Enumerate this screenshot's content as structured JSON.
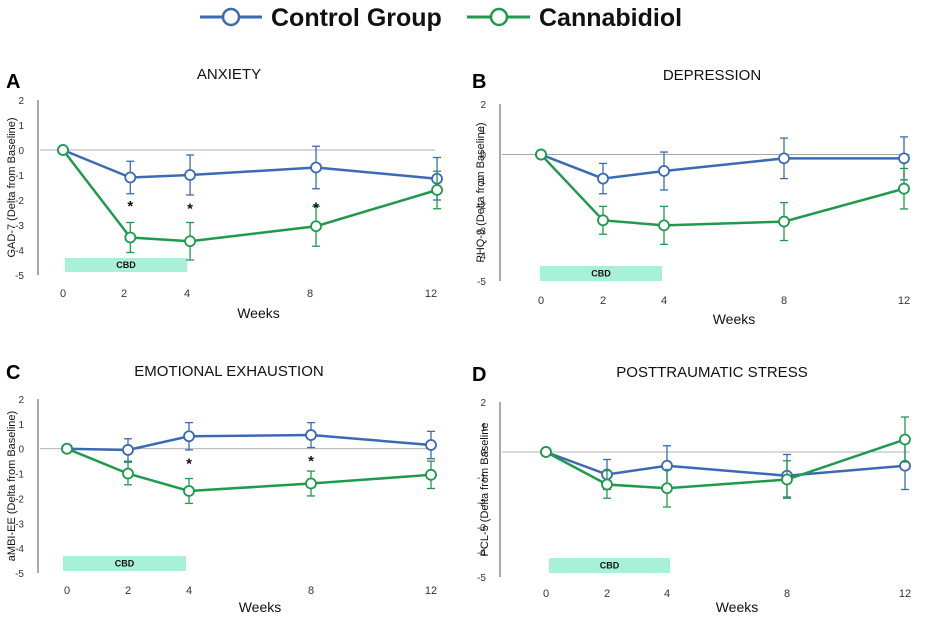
{
  "legend": {
    "entries": [
      {
        "name": "Control Group",
        "color": "#3b6ab5"
      },
      {
        "name": "Cannabidiol",
        "color": "#1f9a4c"
      }
    ]
  },
  "colors": {
    "control": "#3b6ab5",
    "cbd": "#1f9a4c",
    "cbd_bar": "#a8f0d8",
    "axis": "#555555",
    "zero_line": "#999999"
  },
  "x_axis_label": "Weeks",
  "chart_data": [
    {
      "letter": "A",
      "type": "line",
      "title": "ANXIETY",
      "ylabel": "GAD-7 (Delta from Baseline)",
      "xlabel": "Weeks",
      "x_ticks": [
        0,
        2,
        4,
        8,
        12
      ],
      "ylim": [
        -5,
        2
      ],
      "cbd_bar_label": "CBD",
      "cbd_bar_range": [
        0,
        4
      ],
      "significance": [
        {
          "x": 2.2,
          "y": -2.2,
          "label": "*"
        },
        {
          "x": 4.1,
          "y": -2.3,
          "label": "*"
        },
        {
          "x": 8.2,
          "y": -2.25,
          "label": "*"
        }
      ],
      "series": [
        {
          "name": "Control Group",
          "x": [
            0,
            2.2,
            4.1,
            8.2,
            12.2
          ],
          "y": [
            0,
            -1.1,
            -1.0,
            -0.7,
            -1.15
          ],
          "err": [
            0,
            0.65,
            0.8,
            0.85,
            0.85
          ]
        },
        {
          "name": "Cannabidiol",
          "x": [
            0,
            2.2,
            4.1,
            8.2,
            12.2
          ],
          "y": [
            0,
            -3.5,
            -3.65,
            -3.05,
            -1.6
          ],
          "err": [
            0,
            0.6,
            0.75,
            0.8,
            0.75
          ]
        }
      ]
    },
    {
      "letter": "B",
      "type": "line",
      "title": "DEPRESSION",
      "ylabel": "PHQ-9 (Delta from Baseline)",
      "xlabel": "Weeks",
      "x_ticks": [
        0,
        2,
        4,
        8,
        12
      ],
      "ylim": [
        -5,
        2
      ],
      "cbd_bar_label": "CBD",
      "cbd_bar_range": [
        0,
        4
      ],
      "significance": [],
      "series": [
        {
          "name": "Control Group",
          "x": [
            0,
            2,
            4,
            8,
            12
          ],
          "y": [
            0,
            -0.95,
            -0.65,
            -0.15,
            -0.15
          ],
          "err": [
            0,
            0.6,
            0.75,
            0.8,
            0.85
          ]
        },
        {
          "name": "Cannabidiol",
          "x": [
            0,
            2,
            4,
            8,
            12
          ],
          "y": [
            0,
            -2.6,
            -2.8,
            -2.65,
            -1.35
          ],
          "err": [
            0,
            0.55,
            0.75,
            0.75,
            0.8
          ]
        }
      ]
    },
    {
      "letter": "C",
      "type": "line",
      "title": "EMOTIONAL EXHAUSTION",
      "ylabel": "aMBI-EE (Delta from Baseline)",
      "xlabel": "Weeks",
      "x_ticks": [
        0,
        2,
        4,
        8,
        12
      ],
      "ylim": [
        -5,
        2
      ],
      "cbd_bar_label": "CBD",
      "cbd_bar_range": [
        0,
        4
      ],
      "significance": [
        {
          "x": 4,
          "y": -0.55,
          "label": "*"
        },
        {
          "x": 8,
          "y": -0.45,
          "label": "*"
        }
      ],
      "series": [
        {
          "name": "Control Group",
          "x": [
            0,
            2,
            4,
            8,
            12
          ],
          "y": [
            0,
            -0.05,
            0.5,
            0.55,
            0.15
          ],
          "err": [
            0,
            0.45,
            0.55,
            0.5,
            0.55
          ]
        },
        {
          "name": "Cannabidiol",
          "x": [
            0,
            2,
            4,
            8,
            12
          ],
          "y": [
            0,
            -1.0,
            -1.7,
            -1.4,
            -1.05
          ],
          "err": [
            0,
            0.45,
            0.5,
            0.5,
            0.55
          ]
        }
      ]
    },
    {
      "letter": "D",
      "type": "line",
      "title": "POSTTRAUMATIC STRESS",
      "ylabel": "PCL-5 (Delta from Baseline",
      "xlabel": "Weeks",
      "x_ticks": [
        0,
        2,
        4,
        8,
        12
      ],
      "ylim": [
        -5,
        2
      ],
      "cbd_bar_label": "CBD",
      "cbd_bar_range": [
        0,
        4
      ],
      "significance": [],
      "series": [
        {
          "name": "Control Group",
          "x": [
            0,
            2,
            4,
            8,
            12
          ],
          "y": [
            0,
            -0.9,
            -0.55,
            -0.95,
            -0.55
          ],
          "err": [
            0,
            0.6,
            0.8,
            0.85,
            0.95
          ]
        },
        {
          "name": "Cannabidiol",
          "x": [
            0,
            2,
            4,
            8,
            12
          ],
          "y": [
            0,
            -1.3,
            -1.45,
            -1.1,
            0.5
          ],
          "err": [
            0,
            0.55,
            0.75,
            0.75,
            0.9
          ]
        }
      ]
    }
  ]
}
